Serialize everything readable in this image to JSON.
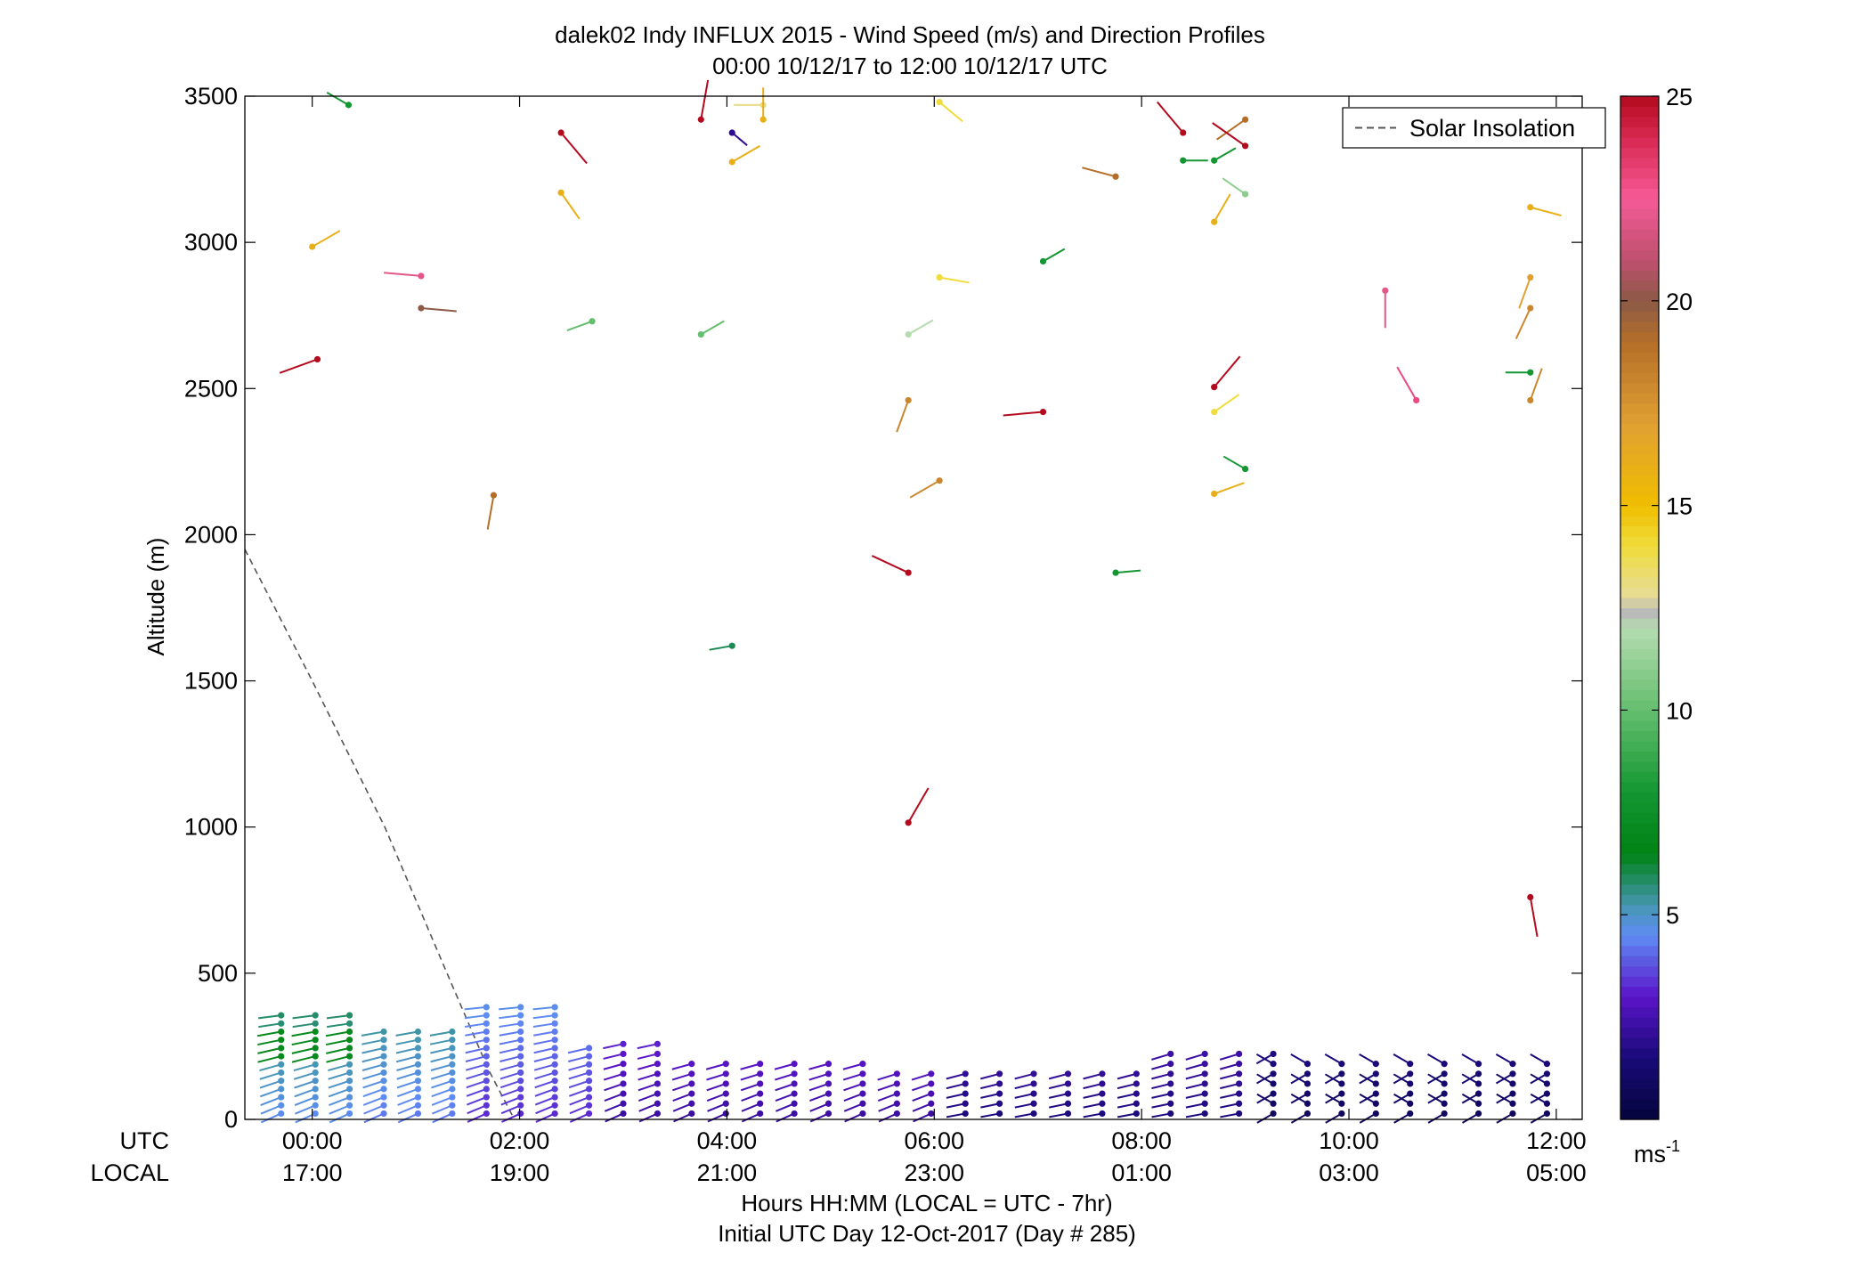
{
  "titles": {
    "line1": "dalek02 Indy INFLUX 2015 - Wind Speed (m/s) and Direction Profiles",
    "line2": "00:00 10/12/17 to 12:00 10/12/17  UTC"
  },
  "axes": {
    "ylabel": "Altitude (m)",
    "utc_label": "UTC",
    "local_label": "LOCAL",
    "xlabel_line1": "Hours HH:MM  (LOCAL = UTC - 7hr)",
    "xlabel_line2": "Initial UTC Day 12-Oct-2017 (Day # 285)",
    "colorbar_unit": "ms",
    "colorbar_unit_exp": "-1"
  },
  "legend": {
    "label": "Solar Insolation"
  },
  "chart_data": {
    "type": "scatter",
    "x_range_hours": [
      -0.65,
      12.25
    ],
    "ylim": [
      0,
      3500
    ],
    "yticks": [
      0,
      500,
      1000,
      1500,
      2000,
      2500,
      3000,
      3500
    ],
    "ytick_labels": [
      "0",
      "500",
      "1000",
      "1500",
      "2000",
      "2500",
      "3000",
      "3500"
    ],
    "xtick_hours": [
      0,
      2,
      4,
      6,
      8,
      10,
      12
    ],
    "xtick_utc": [
      "00:00",
      "02:00",
      "04:00",
      "06:00",
      "08:00",
      "10:00",
      "12:00"
    ],
    "xtick_local": [
      "17:00",
      "19:00",
      "21:00",
      "23:00",
      "01:00",
      "03:00",
      "05:00"
    ],
    "colorbar": {
      "min": 0,
      "max": 25,
      "ticks": [
        5,
        10,
        15,
        20,
        25
      ]
    },
    "solar_insolation": [
      {
        "x": -0.65,
        "y": 1950
      },
      {
        "x": 0.0,
        "y": 1500
      },
      {
        "x": 0.7,
        "y": 1000
      },
      {
        "x": 1.3,
        "y": 500
      },
      {
        "x": 1.7,
        "y": 170
      },
      {
        "x": 1.95,
        "y": 0
      }
    ],
    "upper_barbs": [
      {
        "t": 0.35,
        "alt": 3470,
        "spd": 8,
        "dir": 300
      },
      {
        "t": 0.0,
        "alt": 2985,
        "spd": 16,
        "dir": 60
      },
      {
        "t": 0.05,
        "alt": 2600,
        "spd": 25,
        "dir": 250
      },
      {
        "t": 1.05,
        "alt": 2885,
        "spd": 22,
        "dir": 275
      },
      {
        "t": 1.05,
        "alt": 2775,
        "spd": 20,
        "dir": 95
      },
      {
        "t": 1.75,
        "alt": 2135,
        "spd": 19,
        "dir": 190
      },
      {
        "t": 2.4,
        "alt": 3375,
        "spd": 25,
        "dir": 140
      },
      {
        "t": 2.4,
        "alt": 3170,
        "spd": 16,
        "dir": 145
      },
      {
        "t": 2.7,
        "alt": 2730,
        "spd": 10,
        "dir": 250
      },
      {
        "t": 3.75,
        "alt": 3420,
        "spd": 25,
        "dir": 10
      },
      {
        "t": 3.75,
        "alt": 2685,
        "spd": 10,
        "dir": 60
      },
      {
        "t": 4.05,
        "alt": 3375,
        "spd": 2,
        "dir": 130
      },
      {
        "t": 4.05,
        "alt": 3275,
        "spd": 16,
        "dir": 60
      },
      {
        "t": 4.05,
        "alt": 1620,
        "spd": 6,
        "dir": 260
      },
      {
        "t": 4.35,
        "alt": 3470,
        "spd": 13,
        "dir": 270
      },
      {
        "t": 4.35,
        "alt": 3420,
        "spd": 16,
        "dir": 0
      },
      {
        "t": 5.75,
        "alt": 2460,
        "spd": 18,
        "dir": 200
      },
      {
        "t": 5.75,
        "alt": 2685,
        "spd": 12,
        "dir": 60
      },
      {
        "t": 5.75,
        "alt": 1870,
        "spd": 25,
        "dir": 295
      },
      {
        "t": 5.75,
        "alt": 1015,
        "spd": 25,
        "dir": 30
      },
      {
        "t": 6.05,
        "alt": 2880,
        "spd": 14,
        "dir": 100
      },
      {
        "t": 6.05,
        "alt": 2185,
        "spd": 18,
        "dir": 240
      },
      {
        "t": 7.05,
        "alt": 2935,
        "spd": 8,
        "dir": 60
      },
      {
        "t": 7.05,
        "alt": 2420,
        "spd": 25,
        "dir": 265
      },
      {
        "t": 7.75,
        "alt": 3225,
        "spd": 19,
        "dir": 285
      },
      {
        "t": 7.75,
        "alt": 1870,
        "spd": 8,
        "dir": 85
      },
      {
        "t": 8.4,
        "alt": 3375,
        "spd": 25,
        "dir": 320
      },
      {
        "t": 8.4,
        "alt": 3280,
        "spd": 8,
        "dir": 90
      },
      {
        "t": 8.7,
        "alt": 3280,
        "spd": 8,
        "dir": 60
      },
      {
        "t": 8.7,
        "alt": 3070,
        "spd": 16,
        "dir": 30
      },
      {
        "t": 8.7,
        "alt": 2505,
        "spd": 25,
        "dir": 40
      },
      {
        "t": 8.7,
        "alt": 2420,
        "spd": 14,
        "dir": 55
      },
      {
        "t": 8.7,
        "alt": 2140,
        "spd": 16,
        "dir": 70
      },
      {
        "t": 9.0,
        "alt": 3420,
        "spd": 19,
        "dir": 235
      },
      {
        "t": 9.0,
        "alt": 3330,
        "spd": 25,
        "dir": 305
      },
      {
        "t": 9.0,
        "alt": 3165,
        "spd": 11,
        "dir": 305
      },
      {
        "t": 9.0,
        "alt": 2225,
        "spd": 8,
        "dir": 300
      },
      {
        "t": 10.35,
        "alt": 2835,
        "spd": 22,
        "dir": 180
      },
      {
        "t": 10.65,
        "alt": 2460,
        "spd": 23,
        "dir": 330
      },
      {
        "t": 11.75,
        "alt": 3120,
        "spd": 16,
        "dir": 105
      },
      {
        "t": 11.75,
        "alt": 2880,
        "spd": 17,
        "dir": 200
      },
      {
        "t": 11.75,
        "alt": 2775,
        "spd": 18,
        "dir": 205
      },
      {
        "t": 11.75,
        "alt": 2555,
        "spd": 8,
        "dir": 270
      },
      {
        "t": 11.75,
        "alt": 2460,
        "spd": 18,
        "dir": 20
      },
      {
        "t": 11.75,
        "alt": 760,
        "spd": 25,
        "dir": 170
      },
      {
        "t": 6.05,
        "alt": 3480,
        "spd": 14,
        "dir": 130
      }
    ]
  }
}
